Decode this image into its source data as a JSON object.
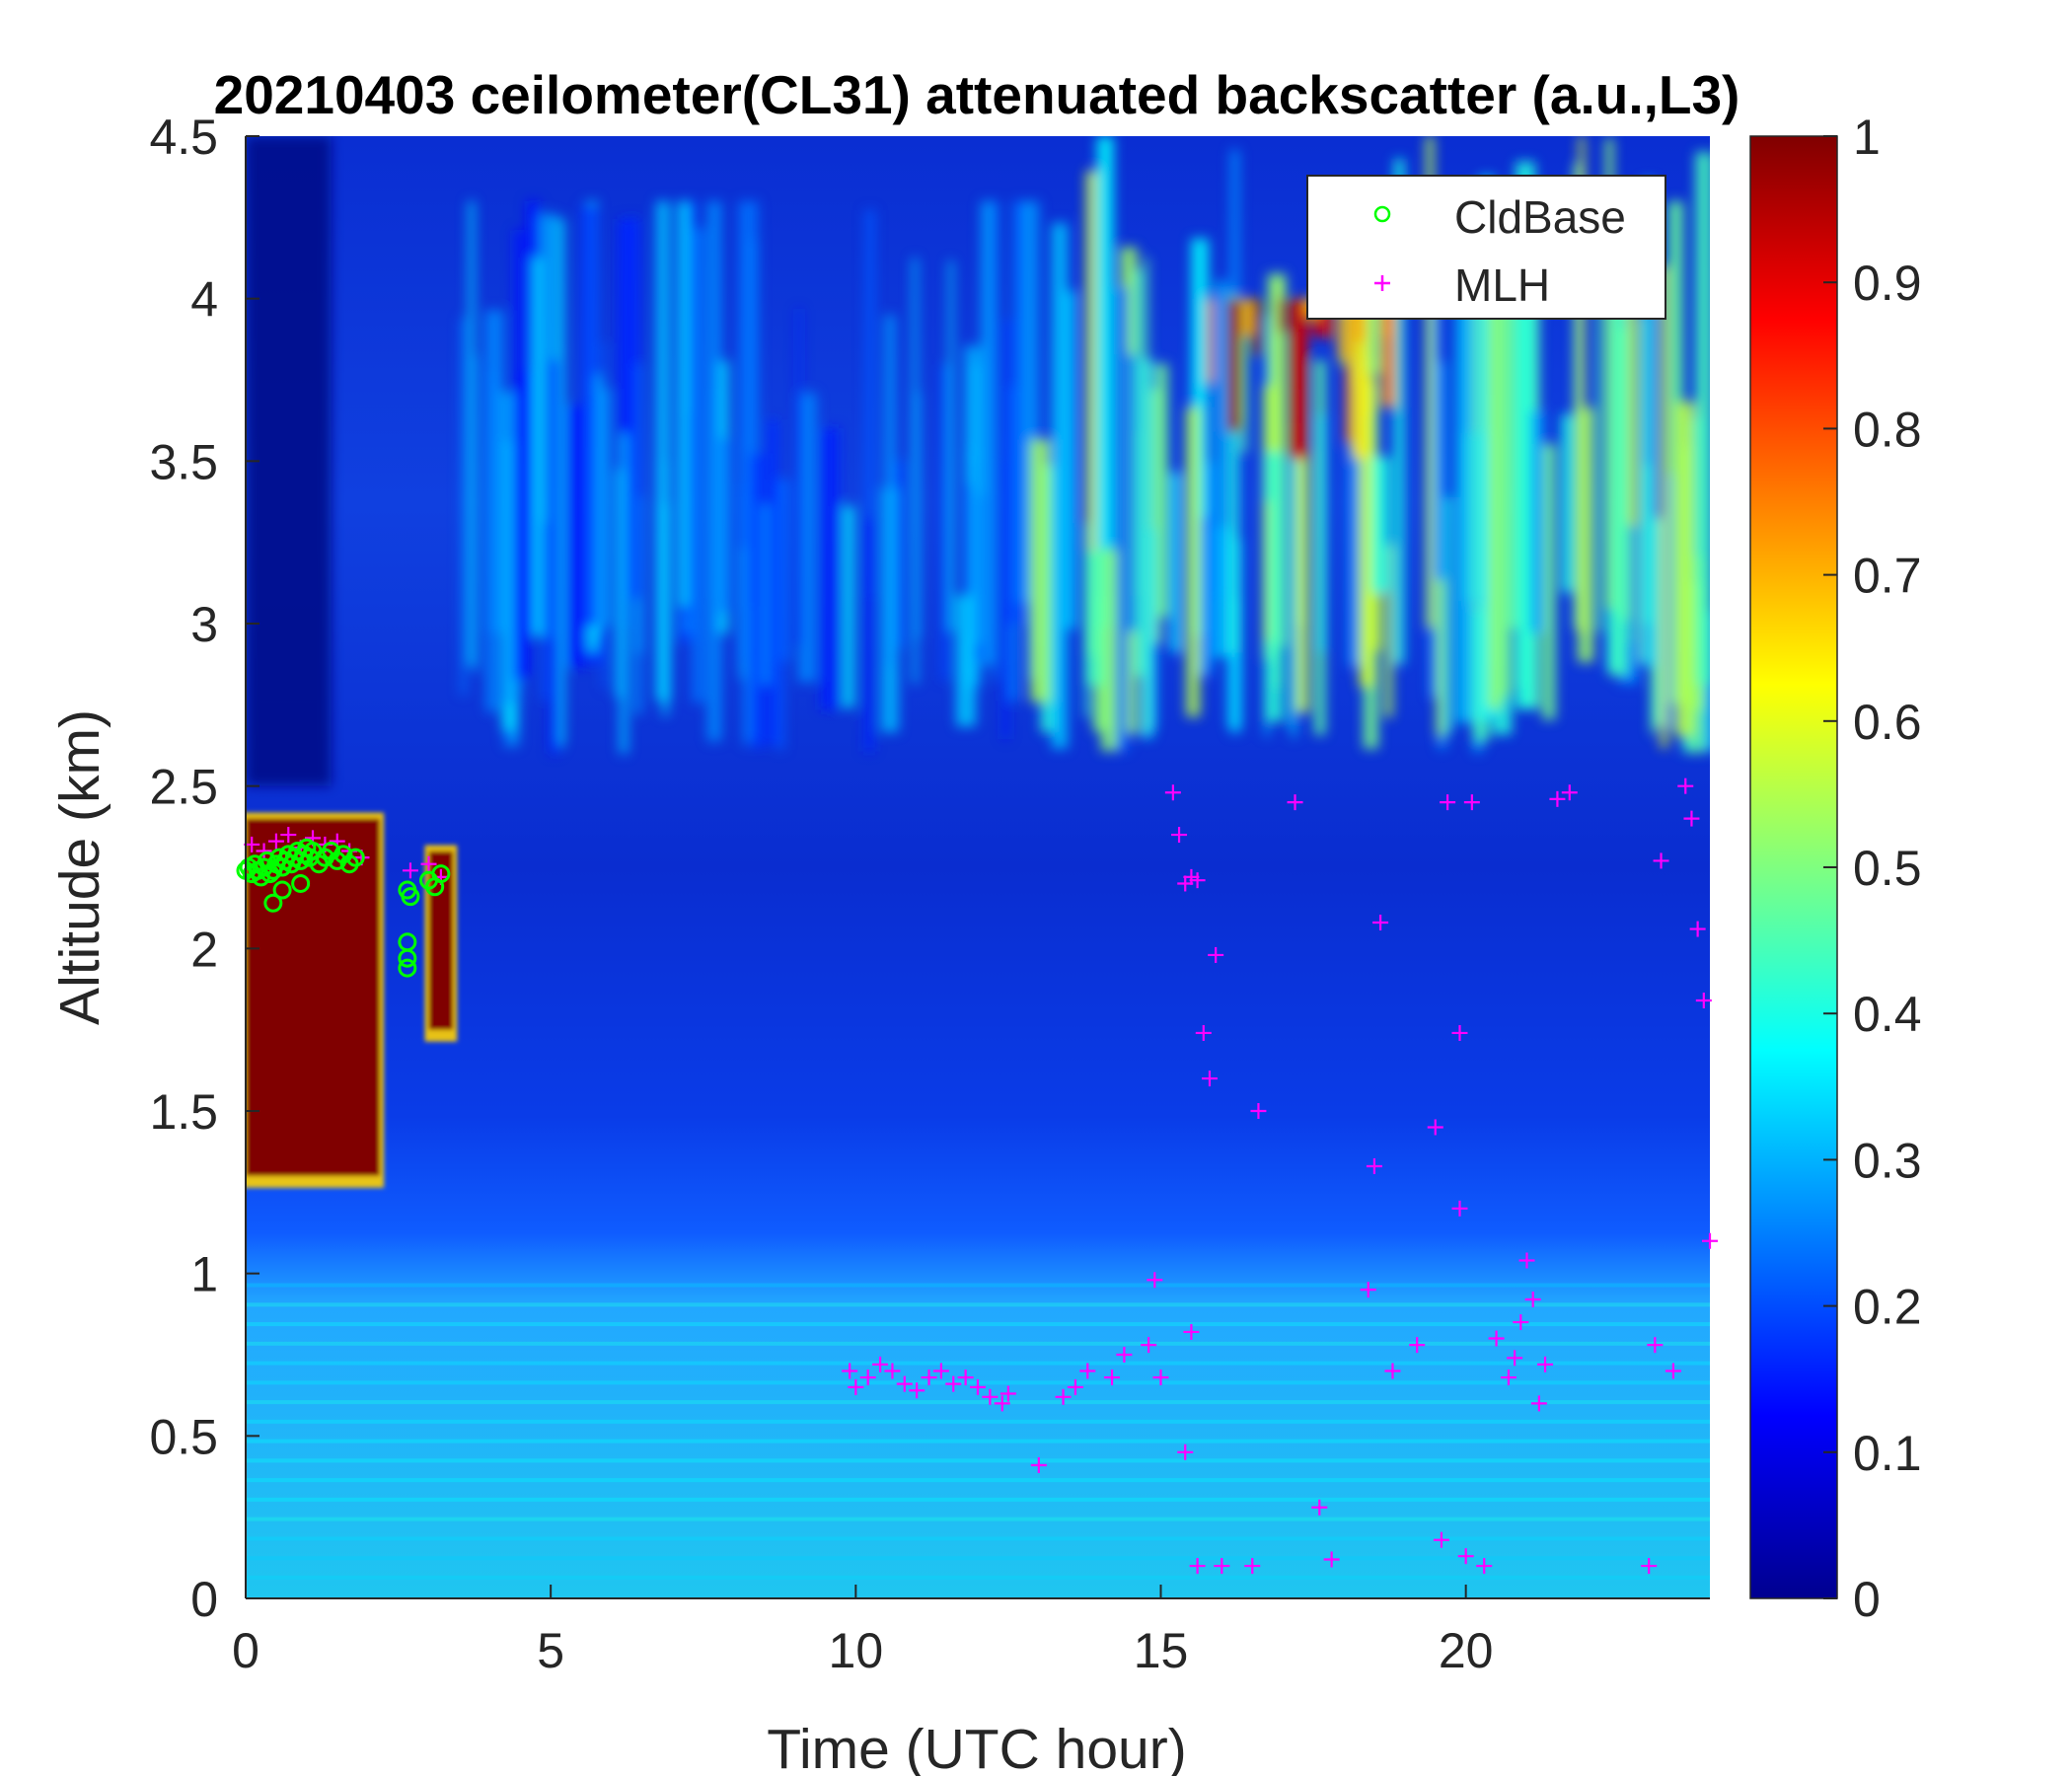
{
  "chart_data": {
    "type": "heatmap",
    "title": "20210403 ceilometer(CL31) attenuated backscatter (a.u.,L3)",
    "xlabel": "Time (UTC hour)",
    "ylabel": "Altitude (km)",
    "xlim": [
      0,
      24
    ],
    "ylim": [
      0,
      4.5
    ],
    "x_ticks": [
      "0",
      "5",
      "10",
      "15",
      "20"
    ],
    "y_ticks": [
      "0",
      "0.5",
      "1",
      "1.5",
      "2",
      "2.5",
      "3",
      "3.5",
      "4",
      "4.5"
    ],
    "colorbar": {
      "range": [
        0,
        1
      ],
      "ticks": [
        "0",
        "0.1",
        "0.2",
        "0.3",
        "0.4",
        "0.5",
        "0.6",
        "0.7",
        "0.8",
        "0.9",
        "1"
      ],
      "colormap": "jet"
    },
    "legend": {
      "position": "top-right",
      "entries": [
        {
          "label": "CldBase",
          "marker": "circle",
          "color": "#00ff00"
        },
        {
          "label": "MLH",
          "marker": "plus",
          "color": "#ff00ff"
        }
      ]
    },
    "cloud_regions": [
      {
        "t_start": 0.0,
        "t_end": 2.2,
        "z_bottom": 1.3,
        "z_top": 2.4,
        "value": 1.0
      },
      {
        "t_start": 3.0,
        "t_end": 3.4,
        "z_bottom": 1.75,
        "z_top": 2.3,
        "value": 1.0
      }
    ],
    "elevated_layers": [
      {
        "t_start": 15.8,
        "t_end": 18.9,
        "z_bottom": 3.5,
        "z_top": 4.0,
        "value": 0.85
      },
      {
        "t_start": 13.0,
        "t_end": 24.0,
        "z_bottom": 2.6,
        "z_top": 4.5,
        "value": 0.5
      },
      {
        "t_start": 3.5,
        "t_end": 13.0,
        "z_bottom": 2.6,
        "z_top": 4.3,
        "value": 0.3
      }
    ],
    "cldbase": {
      "t": [
        0.0,
        0.05,
        0.1,
        0.15,
        0.2,
        0.25,
        0.3,
        0.35,
        0.4,
        0.45,
        0.5,
        0.55,
        0.6,
        0.65,
        0.7,
        0.75,
        0.8,
        0.85,
        0.9,
        0.95,
        1.0,
        1.05,
        1.1,
        1.2,
        1.3,
        1.4,
        1.5,
        1.6,
        1.7,
        1.8,
        0.45,
        0.6,
        0.9,
        2.65,
        2.65,
        2.65,
        2.65,
        2.7,
        3.0,
        3.1,
        3.2
      ],
      "z": [
        2.24,
        2.25,
        2.23,
        2.26,
        2.24,
        2.22,
        2.25,
        2.27,
        2.23,
        2.24,
        2.26,
        2.28,
        2.25,
        2.27,
        2.29,
        2.26,
        2.28,
        2.3,
        2.27,
        2.29,
        2.31,
        2.28,
        2.3,
        2.26,
        2.28,
        2.3,
        2.27,
        2.29,
        2.26,
        2.28,
        2.14,
        2.18,
        2.2,
        2.18,
        2.02,
        1.97,
        1.94,
        2.16,
        2.21,
        2.19,
        2.23
      ]
    },
    "mlh": {
      "t": [
        0.1,
        0.3,
        0.5,
        0.7,
        0.9,
        1.1,
        1.3,
        1.5,
        1.7,
        1.9,
        2.7,
        3.0,
        3.2,
        9.9,
        10.0,
        10.2,
        10.4,
        10.6,
        10.8,
        11.0,
        11.2,
        11.4,
        11.6,
        11.8,
        12.0,
        12.2,
        12.4,
        12.5,
        13.0,
        13.4,
        13.6,
        13.8,
        14.2,
        14.4,
        14.8,
        14.9,
        15.0,
        15.2,
        15.3,
        15.4,
        15.5,
        15.6,
        15.7,
        15.8,
        15.9,
        15.5,
        15.4,
        15.6,
        16.6,
        16.0,
        16.5,
        17.2,
        17.6,
        17.8,
        18.4,
        18.5,
        18.6,
        18.8,
        19.2,
        19.5,
        19.6,
        19.7,
        19.9,
        19.9,
        20.0,
        20.1,
        20.3,
        20.5,
        20.7,
        20.8,
        20.9,
        21.0,
        21.1,
        21.2,
        21.3,
        21.5,
        21.7,
        23.0,
        23.1,
        23.2,
        23.4,
        23.6,
        23.7,
        23.8,
        23.9,
        24.0
      ],
      "z": [
        2.32,
        2.3,
        2.33,
        2.35,
        2.31,
        2.34,
        2.32,
        2.33,
        2.3,
        2.28,
        2.24,
        2.26,
        2.22,
        0.7,
        0.65,
        0.68,
        0.72,
        0.7,
        0.66,
        0.64,
        0.68,
        0.7,
        0.66,
        0.68,
        0.65,
        0.62,
        0.6,
        0.63,
        0.41,
        0.62,
        0.65,
        0.7,
        0.68,
        0.75,
        0.78,
        0.98,
        0.68,
        2.48,
        2.35,
        2.2,
        2.22,
        2.21,
        1.74,
        1.6,
        1.98,
        0.82,
        0.45,
        0.1,
        1.5,
        0.1,
        0.1,
        2.45,
        0.28,
        0.12,
        0.95,
        1.33,
        2.08,
        0.7,
        0.78,
        1.45,
        0.18,
        2.45,
        1.74,
        1.2,
        0.13,
        2.45,
        0.1,
        0.8,
        0.68,
        0.74,
        0.85,
        1.04,
        0.92,
        0.6,
        0.72,
        2.46,
        2.48,
        0.1,
        0.78,
        2.27,
        0.7,
        2.5,
        2.4,
        2.06,
        1.84,
        1.1
      ]
    }
  }
}
